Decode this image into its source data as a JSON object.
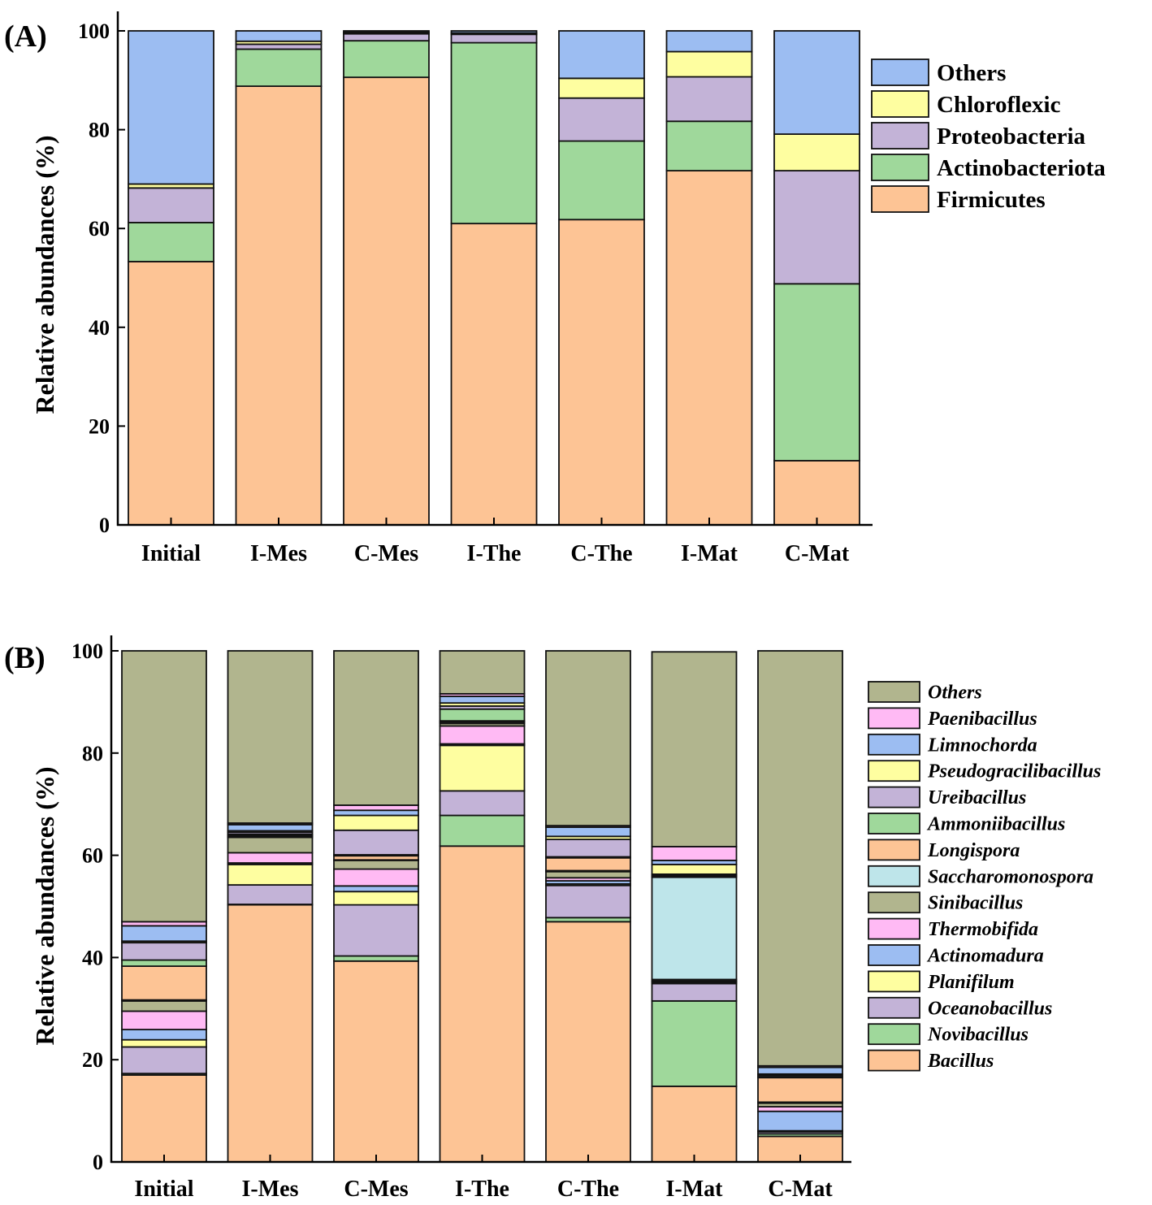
{
  "chart_data": [
    {
      "type": "stacked-bar",
      "panel_label": "(A)",
      "ylabel": "Relative abundances (%)",
      "ylim": [
        0,
        100
      ],
      "yticks": [
        "0",
        "20",
        "40",
        "60",
        "80",
        "100"
      ],
      "categories": [
        "Initial",
        "I-Mes",
        "C-Mes",
        "I-The",
        "C-The",
        "I-Mat",
        "C-Mat"
      ],
      "legend_position": "right",
      "series": [
        {
          "name": "Firmicutes",
          "color": "#FDC495",
          "values": [
            53.3,
            88.8,
            90.6,
            61.0,
            61.8,
            71.7,
            13.0
          ]
        },
        {
          "name": "Actinobacteriota",
          "color": "#9FD89B",
          "values": [
            7.9,
            7.5,
            7.4,
            36.6,
            15.9,
            10.0,
            35.8
          ]
        },
        {
          "name": "Proteobacteria",
          "color": "#C3B3D7",
          "values": [
            7.0,
            1.0,
            1.4,
            1.7,
            8.7,
            9.0,
            22.9
          ]
        },
        {
          "name": "Chloroflexic",
          "color": "#FEFEA0",
          "values": [
            0.8,
            0.6,
            0.3,
            0.3,
            4.0,
            5.1,
            7.4
          ]
        },
        {
          "name": "Others",
          "color": "#9CBDF2",
          "values": [
            31.0,
            2.1,
            0.3,
            0.4,
            9.6,
            4.2,
            20.9
          ]
        }
      ]
    },
    {
      "type": "stacked-bar",
      "panel_label": "(B)",
      "ylabel": "Relative abundances (%)",
      "ylim": [
        0,
        100
      ],
      "yticks": [
        "0",
        "20",
        "40",
        "60",
        "80",
        "100"
      ],
      "categories": [
        "Initial",
        "I-Mes",
        "C-Mes",
        "I-The",
        "C-The",
        "I-Mat",
        "C-Mat"
      ],
      "legend_position": "right",
      "series": [
        {
          "name": "Bacillus",
          "color": "#FDC495",
          "values": [
            17.0,
            50.3,
            39.3,
            61.8,
            47.0,
            14.8,
            5.0
          ]
        },
        {
          "name": "Novibacillus",
          "color": "#9FD89B",
          "values": [
            0.3,
            0.1,
            1.0,
            6.0,
            0.8,
            16.7,
            0.5
          ]
        },
        {
          "name": "Oceanobacillus",
          "color": "#C3B3D7",
          "values": [
            5.2,
            3.8,
            10.0,
            4.8,
            6.3,
            3.4,
            0.4
          ]
        },
        {
          "name": "Planifilum",
          "color": "#FEFEA0",
          "values": [
            1.4,
            4.0,
            2.6,
            8.9,
            0.3,
            0.2,
            0.2
          ]
        },
        {
          "name": "Actinomadura",
          "color": "#9CBDF2",
          "values": [
            2.0,
            0.3,
            1.1,
            0.3,
            0.6,
            0.2,
            3.8
          ]
        },
        {
          "name": "Thermobifida",
          "color": "#FFBAF4",
          "values": [
            3.6,
            2.0,
            3.3,
            3.5,
            0.6,
            0.1,
            0.9
          ]
        },
        {
          "name": "Sinibacillus",
          "color": "#B1B58E",
          "values": [
            2.0,
            3.0,
            1.7,
            0.5,
            1.2,
            0.3,
            0.7
          ]
        },
        {
          "name": "Saccharomonospora",
          "color": "#BEE5EA",
          "values": [
            0.2,
            0.2,
            0.1,
            0.3,
            0.2,
            20.0,
            0.2
          ]
        },
        {
          "name": "Longispora",
          "color": "#FDC495",
          "values": [
            6.6,
            0.2,
            0.8,
            0.2,
            2.5,
            0.2,
            4.8
          ]
        },
        {
          "name": "Ammoniibacillus",
          "color": "#9FD89B",
          "values": [
            1.2,
            0.2,
            0.2,
            2.3,
            0.2,
            0.2,
            0.2
          ]
        },
        {
          "name": "Ureibacillus",
          "color": "#C3B3D7",
          "values": [
            3.4,
            0.4,
            4.8,
            0.6,
            3.4,
            0.2,
            0.3
          ]
        },
        {
          "name": "Pseudogracilibacillus",
          "color": "#FEFEA0",
          "values": [
            0.3,
            0.3,
            2.9,
            0.6,
            0.6,
            1.9,
            0.2
          ]
        },
        {
          "name": "Limnochorda",
          "color": "#9CBDF2",
          "values": [
            3.0,
            1.2,
            1.0,
            1.3,
            1.8,
            0.8,
            1.3
          ]
        },
        {
          "name": "Paenibacillus",
          "color": "#FFBAF4",
          "values": [
            0.8,
            0.3,
            1.0,
            0.5,
            0.3,
            2.7,
            0.3
          ]
        },
        {
          "name": "Others",
          "color": "#B1B58E",
          "values": [
            53.0,
            33.7,
            30.2,
            8.4,
            34.2,
            38.1,
            81.2
          ]
        }
      ]
    }
  ]
}
